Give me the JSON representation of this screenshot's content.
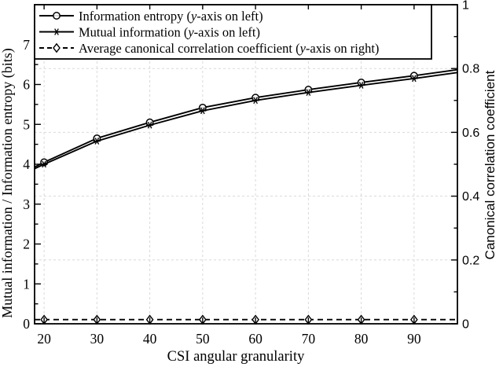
{
  "figure": {
    "background": "#ffffff",
    "foreground": "#000000",
    "grid_color": "#d9d9d9"
  },
  "chart_data": {
    "type": "line",
    "title": "",
    "xlabel": "CSI angular granularity",
    "ylabel_left": "Mutual information / Information entropy (bits)",
    "ylabel_right": "Canonical correlation coefficient",
    "xlim": [
      18.2,
      98.2
    ],
    "ylim_left": [
      0,
      8
    ],
    "ylim_right": [
      0,
      1
    ],
    "x_ticks": [
      20,
      30,
      40,
      50,
      60,
      70,
      80,
      90
    ],
    "x_tick_labels": [
      "20",
      "30",
      "40",
      "50",
      "60",
      "70",
      "80",
      "90"
    ],
    "y_ticks_left": [
      0,
      1,
      2,
      3,
      4,
      5,
      6,
      7
    ],
    "y_tick_labels_left": [
      "0",
      "1",
      "2",
      "3",
      "4",
      "5",
      "6",
      "7"
    ],
    "y_minor_step_left": 0.5,
    "y_ticks_right": [
      0,
      0.2,
      0.4,
      0.6,
      0.8,
      1
    ],
    "y_tick_labels_right": [
      "0",
      "0.2",
      "0.4",
      "0.6",
      "0.8",
      "1"
    ],
    "y_minor_step_right": 0.1,
    "grid": {
      "vertical_at_x": [
        20,
        30,
        40,
        50,
        60,
        70,
        80,
        90
      ],
      "horizontal_at_right_axis": [
        0.2,
        0.4,
        0.6,
        0.8
      ],
      "style": "dashed"
    },
    "legend": {
      "position": "top-left",
      "entries": [
        "Information entropy (y-axis on left)",
        "Mutual information (y-axis on left)",
        "Average canonical correlation coefficient (y-axis on right)"
      ]
    },
    "series": [
      {
        "name": "Information entropy",
        "legend_label": "Information entropy (y-axis on left)",
        "axis": "left",
        "marker": "circle",
        "linestyle": "solid",
        "color": "#000000",
        "x": [
          18.2,
          20,
          30,
          40,
          50,
          60,
          70,
          80,
          90,
          98.2
        ],
        "y": [
          3.93,
          4.05,
          4.65,
          5.05,
          5.42,
          5.67,
          5.87,
          6.05,
          6.22,
          6.37
        ],
        "marker_x": [
          20,
          30,
          40,
          50,
          60,
          70,
          80,
          90
        ],
        "marker_y": [
          4.05,
          4.65,
          5.05,
          5.42,
          5.67,
          5.87,
          6.05,
          6.22
        ]
      },
      {
        "name": "Mutual information",
        "legend_label": "Mutual information (y-axis on left)",
        "axis": "left",
        "marker": "asterisk",
        "linestyle": "solid",
        "color": "#000000",
        "x": [
          18.2,
          20,
          30,
          40,
          50,
          60,
          70,
          80,
          90,
          98.2
        ],
        "y": [
          3.89,
          4.0,
          4.58,
          4.98,
          5.34,
          5.6,
          5.8,
          5.98,
          6.15,
          6.3
        ],
        "marker_x": [
          20,
          30,
          40,
          50,
          60,
          70,
          80,
          90
        ],
        "marker_y": [
          4.0,
          4.58,
          4.98,
          5.34,
          5.6,
          5.8,
          5.98,
          6.15
        ]
      },
      {
        "name": "Average canonical correlation coefficient",
        "legend_label": "Average canonical correlation coefficient (y-axis on right)",
        "axis": "right",
        "marker": "diamond",
        "linestyle": "dashed",
        "color": "#000000",
        "x": [
          18.2,
          20,
          30,
          40,
          50,
          60,
          70,
          80,
          90,
          98.2
        ],
        "y": [
          0.013,
          0.013,
          0.013,
          0.013,
          0.013,
          0.013,
          0.013,
          0.013,
          0.013,
          0.013
        ],
        "marker_x": [
          20,
          30,
          40,
          50,
          60,
          70,
          80,
          90
        ],
        "marker_y": [
          0.013,
          0.013,
          0.013,
          0.013,
          0.013,
          0.013,
          0.013,
          0.013
        ]
      }
    ]
  }
}
